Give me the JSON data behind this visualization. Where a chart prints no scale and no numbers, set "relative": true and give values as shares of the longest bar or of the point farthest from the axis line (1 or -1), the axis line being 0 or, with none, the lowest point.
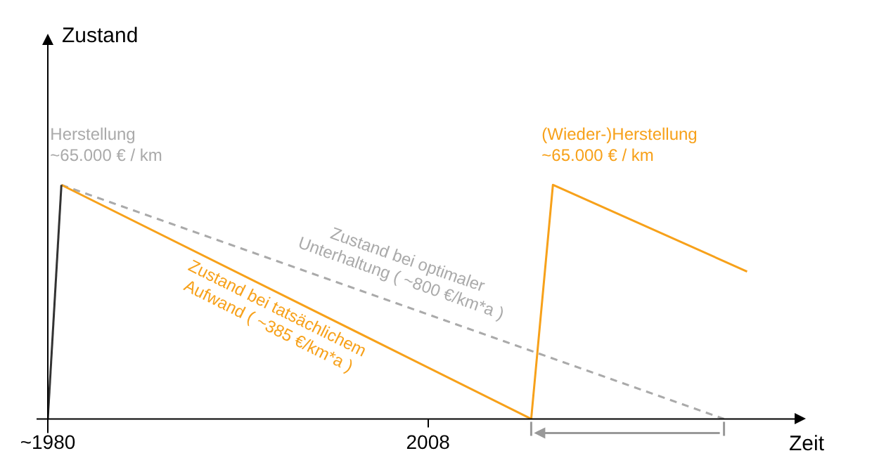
{
  "chart_data": {
    "type": "line",
    "relative": true,
    "xlabel": "Zeit",
    "xlim": [
      1980,
      2035
    ],
    "xticks": [
      {
        "value": 1980,
        "label": "~1980"
      },
      2008
    ],
    "series": [
      {
        "color": "#333333",
        "x": [
          1980,
          1981
        ],
        "values": [
          0,
          1
        ]
      },
      {
        "name": "Zustand bei tatsächlichem Aufwand ( ~385 €/km*a )",
        "color": "#f7a11a",
        "x": [
          1981,
          2015.6,
          2017.2,
          2031.5
        ],
        "values": [
          1,
          0,
          1,
          0.63
        ]
      },
      {
        "name": "Zustand bei optimaler Unterhaltung ( ~800 €/km*a )",
        "color": "#aaaaaa",
        "line_style": "dashed",
        "x": [
          1981,
          2029.8
        ],
        "values": [
          1,
          0
        ]
      }
    ],
    "annotations": [
      "Zustand",
      {
        "text": "Herstellung\n~65.000 € / km",
        "x": 1981,
        "y": 1
      },
      {
        "text": "(Wieder-)Herstellung\n~65.000 € / km",
        "x": 2017.2,
        "y": 1
      }
    ],
    "grid": false,
    "legend": false,
    "marker": "none"
  }
}
